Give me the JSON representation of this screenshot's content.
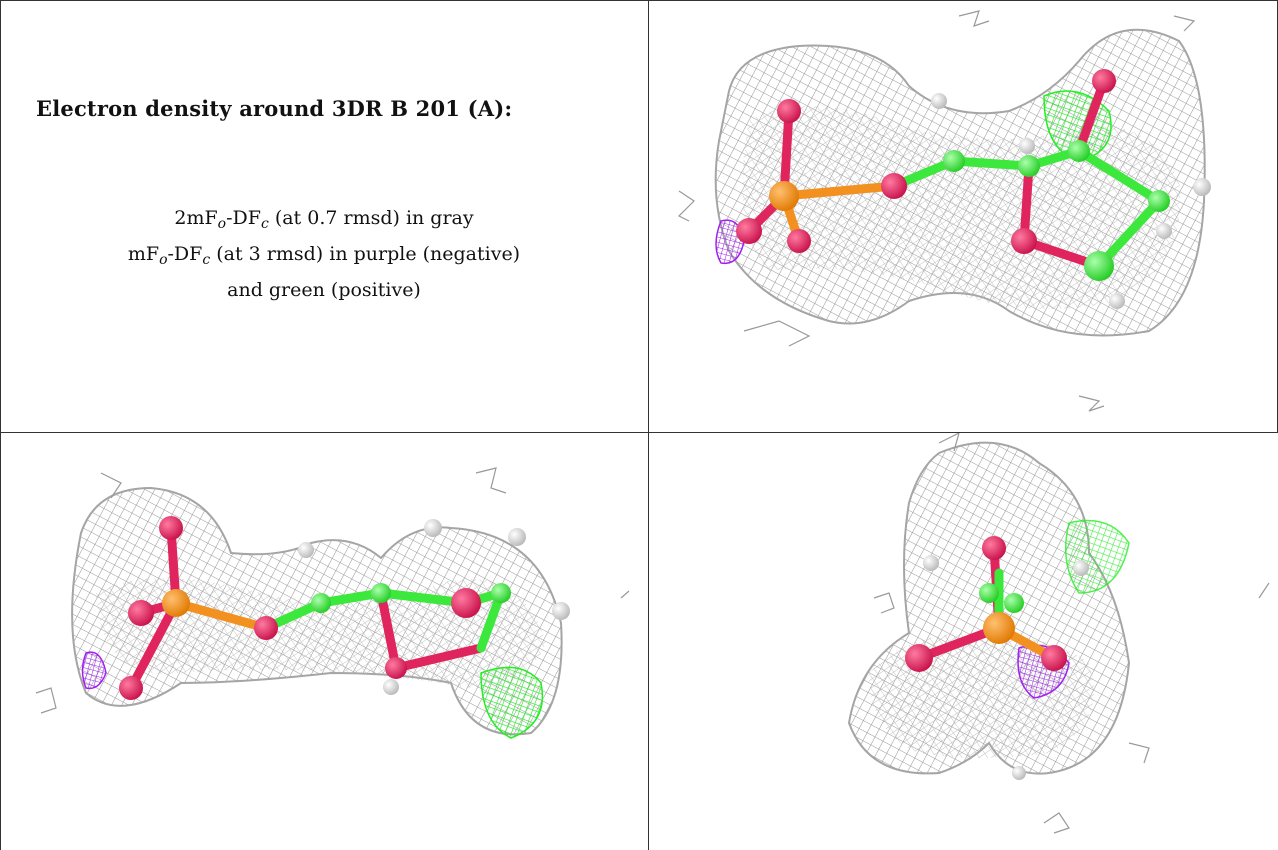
{
  "caption": {
    "title": "Electron density around 3DR B 201 (A):",
    "line1": {
      "prefix": "2mF",
      "sub1": "o",
      "mid": "-DF",
      "sub2": "c",
      "suffix": " (at 0.7 rmsd) in gray"
    },
    "line2": {
      "prefix": "mF",
      "sub1": "o",
      "mid": "-DF",
      "sub2": "c",
      "suffix": " (at 3 rmsd) in purple (negative)"
    },
    "line3": "and green (positive)"
  },
  "colors": {
    "mesh_gray": "#a9a9a9",
    "negative_purple": "#a020f0",
    "positive_green": "#22ee22",
    "oxygen": "#e0245e",
    "phosphorus": "#f29020",
    "carbon": "#3ce83c",
    "hydrogen": "#e6e6e6"
  },
  "panels": [
    {
      "name": "view-top-right",
      "icon": "molecule-density-view"
    },
    {
      "name": "view-bottom-left",
      "icon": "molecule-density-view"
    },
    {
      "name": "view-bottom-right",
      "icon": "molecule-density-view"
    }
  ]
}
